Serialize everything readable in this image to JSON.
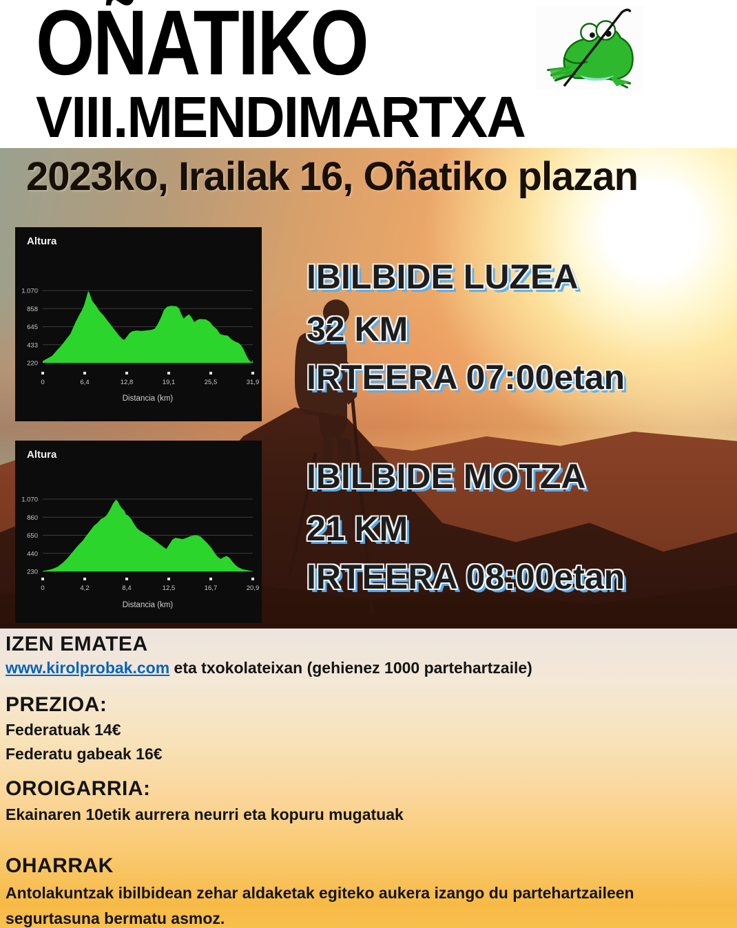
{
  "poster": {
    "title": "OÑATIKO",
    "subtitle": "VIII.MENDIMARTXA",
    "date_line": "2023ko, Irailak 16, Oñatiko plazan"
  },
  "routes": [
    {
      "name": "IBILBIDE LUZEA",
      "distance": "32 KM",
      "start": "IRTEERA 07:00etan"
    },
    {
      "name": "IBILBIDE MOTZA",
      "distance": "21 KM",
      "start": "IRTEERA 08:00etan"
    }
  ],
  "info": {
    "registration_heading": "IZEN EMATEA",
    "registration_link": "www.kirolprobak.com",
    "registration_rest": " eta txokolateixan (gehienez 1000 partehartzaile)",
    "price_heading": "PREZIOA:",
    "price_lines": [
      "Federatuak 14€",
      "Federatu gabeak 16€"
    ],
    "souvenir_heading": "OROIGARRIA:",
    "souvenir_text": "Ekainaren 10etik aurrera neurri eta kopuru mugatuak",
    "notes_heading": "OHARRAK",
    "notes_text": "Antolakuntzak ibilbidean zehar aldaketak egiteko aukera izango du partehartzaileen segurtasuna bermatu asmoz."
  },
  "colors": {
    "chart_green": "#2bd52b",
    "chart_bg": "#0c0c0c",
    "grid_line": "#3d3d3d",
    "tick_text": "#c9c9c9",
    "link_blue": "#0563c1",
    "route_shadow_blue": "#56b0f2"
  },
  "chart_data": [
    {
      "type": "area",
      "name": "long-route-elevation-profile",
      "title": "Altura",
      "xlabel": "Distancia (km)",
      "x_ticks": [
        "0",
        "6,4",
        "12,8",
        "19,1",
        "25,5",
        "31,9"
      ],
      "y_ticks": [
        "220",
        "433",
        "645",
        "858",
        "1.070"
      ],
      "xlim": [
        0,
        31.9
      ],
      "ylim": [
        220,
        1070
      ],
      "points": [
        [
          0,
          240
        ],
        [
          0.7,
          270
        ],
        [
          1.4,
          300
        ],
        [
          2.2,
          370
        ],
        [
          2.9,
          430
        ],
        [
          3.6,
          500
        ],
        [
          4.2,
          560
        ],
        [
          5.0,
          700
        ],
        [
          5.6,
          790
        ],
        [
          5.9,
          830
        ],
        [
          6.3,
          900
        ],
        [
          6.6,
          980
        ],
        [
          6.9,
          1065
        ],
        [
          7.1,
          1040
        ],
        [
          7.5,
          950
        ],
        [
          8.2,
          880
        ],
        [
          8.6,
          830
        ],
        [
          9.2,
          780
        ],
        [
          9.8,
          720
        ],
        [
          10.4,
          660
        ],
        [
          11.0,
          600
        ],
        [
          11.6,
          540
        ],
        [
          12.1,
          500
        ],
        [
          12.4,
          490
        ],
        [
          12.8,
          530
        ],
        [
          13.2,
          570
        ],
        [
          13.6,
          590
        ],
        [
          14.2,
          600
        ],
        [
          15.0,
          595
        ],
        [
          15.6,
          600
        ],
        [
          16.4,
          605
        ],
        [
          17.0,
          620
        ],
        [
          17.5,
          680
        ],
        [
          18.0,
          760
        ],
        [
          18.4,
          840
        ],
        [
          18.9,
          880
        ],
        [
          19.5,
          890
        ],
        [
          20.3,
          885
        ],
        [
          20.7,
          860
        ],
        [
          21.0,
          800
        ],
        [
          21.4,
          740
        ],
        [
          21.8,
          770
        ],
        [
          22.2,
          790
        ],
        [
          22.6,
          755
        ],
        [
          23.0,
          700
        ],
        [
          23.4,
          720
        ],
        [
          23.8,
          735
        ],
        [
          24.8,
          730
        ],
        [
          25.4,
          700
        ],
        [
          25.9,
          650
        ],
        [
          26.4,
          620
        ],
        [
          26.9,
          560
        ],
        [
          27.5,
          545
        ],
        [
          28.1,
          540
        ],
        [
          28.6,
          500
        ],
        [
          29.2,
          470
        ],
        [
          29.7,
          455
        ],
        [
          30.1,
          430
        ],
        [
          30.5,
          380
        ],
        [
          30.9,
          310
        ],
        [
          31.3,
          255
        ],
        [
          31.6,
          230
        ],
        [
          31.75,
          230
        ],
        [
          31.9,
          255
        ]
      ]
    },
    {
      "type": "area",
      "name": "short-route-elevation-profile",
      "title": "Altura",
      "xlabel": "Distancia (km)",
      "x_ticks": [
        "0",
        "4,2",
        "8,4",
        "12,5",
        "16,7",
        "20,9"
      ],
      "y_ticks": [
        "230",
        "440",
        "650",
        "860",
        "1.070"
      ],
      "xlim": [
        0,
        20.9
      ],
      "ylim": [
        230,
        1070
      ],
      "points": [
        [
          0,
          235
        ],
        [
          0.5,
          245
        ],
        [
          1.0,
          260
        ],
        [
          1.5,
          285
        ],
        [
          2.0,
          330
        ],
        [
          2.5,
          390
        ],
        [
          3.0,
          460
        ],
        [
          3.5,
          530
        ],
        [
          4.0,
          590
        ],
        [
          4.3,
          640
        ],
        [
          4.7,
          700
        ],
        [
          5.1,
          760
        ],
        [
          5.5,
          800
        ],
        [
          5.8,
          840
        ],
        [
          6.1,
          855
        ],
        [
          6.4,
          890
        ],
        [
          6.7,
          950
        ],
        [
          7.0,
          1020
        ],
        [
          7.3,
          1065
        ],
        [
          7.5,
          1040
        ],
        [
          7.7,
          990
        ],
        [
          7.9,
          960
        ],
        [
          8.1,
          940
        ],
        [
          8.3,
          890
        ],
        [
          8.5,
          880
        ],
        [
          8.8,
          840
        ],
        [
          9.1,
          780
        ],
        [
          9.4,
          730
        ],
        [
          9.7,
          700
        ],
        [
          10.0,
          680
        ],
        [
          10.4,
          650
        ],
        [
          10.8,
          620
        ],
        [
          11.2,
          585
        ],
        [
          11.6,
          550
        ],
        [
          12.0,
          515
        ],
        [
          12.3,
          490
        ],
        [
          12.6,
          545
        ],
        [
          12.9,
          600
        ],
        [
          13.2,
          620
        ],
        [
          13.5,
          615
        ],
        [
          13.9,
          605
        ],
        [
          14.3,
          620
        ],
        [
          14.7,
          640
        ],
        [
          15.1,
          650
        ],
        [
          15.4,
          648
        ],
        [
          15.7,
          635
        ],
        [
          16.0,
          600
        ],
        [
          16.4,
          555
        ],
        [
          16.8,
          500
        ],
        [
          17.1,
          445
        ],
        [
          17.4,
          400
        ],
        [
          17.7,
          375
        ],
        [
          18.0,
          395
        ],
        [
          18.3,
          410
        ],
        [
          18.6,
          385
        ],
        [
          18.9,
          340
        ],
        [
          19.2,
          300
        ],
        [
          19.5,
          275
        ],
        [
          19.9,
          255
        ],
        [
          20.3,
          245
        ],
        [
          20.6,
          238
        ],
        [
          20.9,
          232
        ]
      ]
    }
  ]
}
